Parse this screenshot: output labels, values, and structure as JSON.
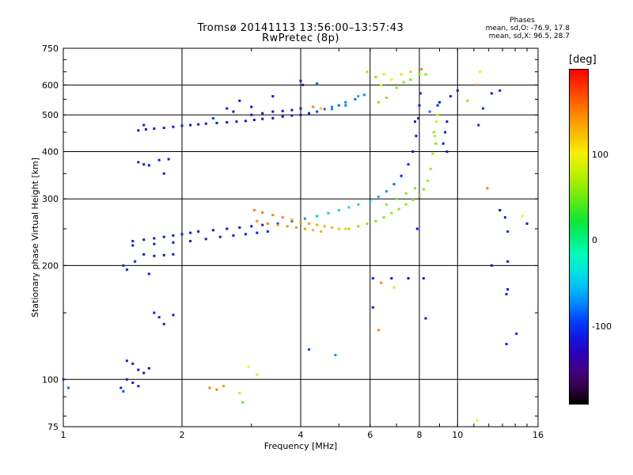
{
  "header": {
    "title_line1": "Tromsø 20141113 13:56:00–13:57:43",
    "title_line2": "RwPretec (8p)"
  },
  "stats": {
    "heading": "Phases",
    "o_label": "mean, sd,O:",
    "o_values": "-76.9, 17.8",
    "x_label": "mean, sd,X:",
    "x_values": "96.5, 28.7"
  },
  "colorbar": {
    "label": "[deg]",
    "ticks": [
      "100",
      "0",
      "-100"
    ],
    "tick_values": [
      100,
      0,
      -100
    ],
    "range": [
      -190,
      200
    ]
  },
  "chart_data": {
    "type": "scatter",
    "xlabel": "Frequency [MHz]",
    "ylabel": "Stationary phase Virtual Height [km]",
    "x_scale": "log",
    "y_scale": "log",
    "xlim": [
      1,
      16
    ],
    "ylim": [
      75,
      750
    ],
    "x_ticks": [
      1,
      2,
      4,
      6,
      8,
      10,
      16
    ],
    "y_ticks": [
      75,
      100,
      200,
      300,
      400,
      500,
      600,
      750
    ],
    "x_grid": [
      2,
      4,
      6,
      8,
      10
    ],
    "y_grid": [
      100,
      200,
      300,
      400,
      500,
      600
    ],
    "color_encoding": "phase [deg]",
    "points": [
      [
        1.55,
        455,
        -110
      ],
      [
        1.62,
        458,
        -110
      ],
      [
        1.7,
        460,
        -110
      ],
      [
        1.8,
        462,
        -105
      ],
      [
        1.9,
        465,
        -110
      ],
      [
        2.0,
        468,
        -110
      ],
      [
        2.1,
        470,
        -115
      ],
      [
        2.2,
        472,
        -110
      ],
      [
        2.3,
        474,
        -110
      ],
      [
        2.45,
        476,
        -115
      ],
      [
        2.6,
        478,
        -120
      ],
      [
        2.75,
        480,
        -118
      ],
      [
        2.9,
        482,
        -120
      ],
      [
        3.05,
        485,
        -125
      ],
      [
        3.2,
        488,
        -128
      ],
      [
        3.4,
        490,
        -125
      ],
      [
        3.6,
        495,
        -122
      ],
      [
        3.8,
        498,
        -120
      ],
      [
        4.0,
        500,
        -115
      ],
      [
        4.2,
        505,
        -110
      ],
      [
        4.4,
        510,
        -90
      ],
      [
        4.6,
        518,
        -80
      ],
      [
        4.8,
        525,
        -70
      ],
      [
        5.0,
        530,
        -85
      ],
      [
        5.2,
        540,
        -75
      ],
      [
        5.5,
        550,
        -80
      ],
      [
        5.8,
        565,
        -70
      ],
      [
        3.0,
        500,
        -120
      ],
      [
        3.2,
        505,
        -125
      ],
      [
        3.4,
        510,
        -128
      ],
      [
        3.6,
        512,
        -125
      ],
      [
        3.8,
        515,
        -120
      ],
      [
        4.0,
        520,
        -115
      ],
      [
        4.3,
        525,
        150
      ],
      [
        4.5,
        520,
        120
      ],
      [
        4.8,
        518,
        -70
      ],
      [
        5.2,
        530,
        -80
      ],
      [
        5.6,
        560,
        -60
      ],
      [
        1.6,
        470,
        -100
      ],
      [
        2.4,
        490,
        -95
      ],
      [
        2.6,
        520,
        -110
      ],
      [
        2.8,
        545,
        -120
      ],
      [
        2.7,
        510,
        -130
      ],
      [
        3.0,
        525,
        -120
      ],
      [
        3.4,
        560,
        -125
      ],
      [
        4.0,
        615,
        -120
      ],
      [
        4.05,
        600,
        -115
      ],
      [
        4.4,
        605,
        -80
      ],
      [
        6.3,
        540,
        60
      ],
      [
        6.6,
        555,
        60
      ],
      [
        7.0,
        590,
        55
      ],
      [
        7.3,
        610,
        55
      ],
      [
        7.6,
        620,
        50
      ],
      [
        8.0,
        640,
        55
      ],
      [
        6.4,
        600,
        100
      ],
      [
        6.8,
        620,
        100
      ],
      [
        7.2,
        640,
        110
      ],
      [
        7.6,
        650,
        120
      ],
      [
        8.1,
        660,
        150
      ],
      [
        8.3,
        640,
        60
      ],
      [
        6.5,
        640,
        90
      ],
      [
        5.9,
        650,
        70
      ],
      [
        6.2,
        630,
        60
      ],
      [
        1.5,
        232,
        -110
      ],
      [
        1.6,
        234,
        -110
      ],
      [
        1.7,
        236,
        -112
      ],
      [
        1.8,
        238,
        -110
      ],
      [
        1.9,
        240,
        -112
      ],
      [
        2.0,
        242,
        -110
      ],
      [
        2.1,
        244,
        -115
      ],
      [
        2.2,
        246,
        -115
      ],
      [
        2.4,
        248,
        -118
      ],
      [
        2.6,
        250,
        -120
      ],
      [
        2.8,
        252,
        -118
      ],
      [
        3.0,
        254,
        -110
      ],
      [
        3.2,
        256,
        -105
      ],
      [
        3.5,
        258,
        -100
      ],
      [
        3.8,
        262,
        -90
      ],
      [
        4.1,
        266,
        -70
      ],
      [
        4.4,
        270,
        -55
      ],
      [
        4.7,
        275,
        -45
      ],
      [
        5.0,
        280,
        -40
      ],
      [
        5.3,
        285,
        -35
      ],
      [
        5.6,
        290,
        -40
      ],
      [
        6.0,
        296,
        -50
      ],
      [
        6.3,
        304,
        -60
      ],
      [
        6.6,
        314,
        -70
      ],
      [
        6.9,
        328,
        -85
      ],
      [
        7.2,
        345,
        -100
      ],
      [
        7.5,
        370,
        -110
      ],
      [
        7.7,
        400,
        -120
      ],
      [
        7.85,
        440,
        -125
      ],
      [
        7.95,
        490,
        -125
      ],
      [
        8.0,
        530,
        -120
      ],
      [
        8.05,
        570,
        -120
      ],
      [
        1.5,
        226,
        -110
      ],
      [
        1.7,
        228,
        -110
      ],
      [
        1.9,
        230,
        -108
      ],
      [
        2.1,
        232,
        -110
      ],
      [
        2.3,
        235,
        -110
      ],
      [
        2.5,
        238,
        -110
      ],
      [
        2.7,
        240,
        -115
      ],
      [
        2.9,
        242,
        -115
      ],
      [
        3.1,
        244,
        -110
      ],
      [
        3.3,
        246,
        -100
      ],
      [
        1.6,
        214,
        -115
      ],
      [
        1.7,
        212,
        -115
      ],
      [
        1.8,
        213,
        -115
      ],
      [
        1.9,
        214,
        -115
      ],
      [
        3.05,
        280,
        150
      ],
      [
        3.2,
        276,
        150
      ],
      [
        3.4,
        272,
        150
      ],
      [
        3.6,
        268,
        150
      ],
      [
        3.8,
        264,
        140
      ],
      [
        4.0,
        260,
        140
      ],
      [
        4.2,
        258,
        140
      ],
      [
        4.4,
        256,
        130
      ],
      [
        4.6,
        254,
        130
      ],
      [
        4.8,
        252,
        130
      ],
      [
        5.0,
        250,
        125
      ],
      [
        5.2,
        250,
        120
      ],
      [
        3.1,
        262,
        150
      ],
      [
        3.3,
        258,
        150
      ],
      [
        3.5,
        256,
        145
      ],
      [
        3.7,
        254,
        145
      ],
      [
        3.9,
        252,
        140
      ],
      [
        4.1,
        250,
        140
      ],
      [
        4.3,
        248,
        130
      ],
      [
        4.5,
        246,
        128
      ],
      [
        5.3,
        250,
        60
      ],
      [
        5.6,
        254,
        60
      ],
      [
        5.9,
        258,
        60
      ],
      [
        6.2,
        262,
        60
      ],
      [
        6.5,
        268,
        60
      ],
      [
        6.8,
        275,
        60
      ],
      [
        7.1,
        282,
        60
      ],
      [
        7.4,
        290,
        60
      ],
      [
        7.7,
        298,
        60
      ],
      [
        8.0,
        306,
        55
      ],
      [
        8.2,
        318,
        60
      ],
      [
        8.4,
        335,
        70
      ],
      [
        8.55,
        360,
        70
      ],
      [
        8.65,
        395,
        70
      ],
      [
        8.75,
        440,
        75
      ],
      [
        8.85,
        480,
        80
      ],
      [
        8.9,
        500,
        85
      ],
      [
        6.6,
        290,
        60
      ],
      [
        7.0,
        300,
        60
      ],
      [
        7.4,
        310,
        60
      ],
      [
        7.8,
        320,
        60
      ],
      [
        1.55,
        375,
        -110
      ],
      [
        1.6,
        370,
        -110
      ],
      [
        1.65,
        368,
        -110
      ],
      [
        1.75,
        380,
        -110
      ],
      [
        1.85,
        382,
        -110
      ],
      [
        1.8,
        350,
        -110
      ],
      [
        1.42,
        200,
        -100
      ],
      [
        1.45,
        195,
        -100
      ],
      [
        1.52,
        205,
        -100
      ],
      [
        1.65,
        190,
        -110
      ],
      [
        1.7,
        150,
        -110
      ],
      [
        1.75,
        146,
        -110
      ],
      [
        1.8,
        140,
        -110
      ],
      [
        1.9,
        148,
        -110
      ],
      [
        1.45,
        112,
        -110
      ],
      [
        1.5,
        110,
        -110
      ],
      [
        1.55,
        106,
        -120
      ],
      [
        1.6,
        104,
        -120
      ],
      [
        1.65,
        107,
        -120
      ],
      [
        1.45,
        100,
        -115
      ],
      [
        1.5,
        98,
        -110
      ],
      [
        1.55,
        96,
        -100
      ],
      [
        1.4,
        95,
        -100
      ],
      [
        1.42,
        93,
        -90
      ],
      [
        1.0,
        100,
        -80
      ],
      [
        1.03,
        95,
        -80
      ],
      [
        2.35,
        95,
        150
      ],
      [
        2.45,
        94,
        150
      ],
      [
        2.55,
        96,
        140
      ],
      [
        2.8,
        92,
        80
      ],
      [
        2.85,
        87,
        50
      ],
      [
        2.95,
        108,
        100
      ],
      [
        3.1,
        103,
        90
      ],
      [
        4.2,
        120,
        -90
      ],
      [
        4.9,
        116,
        -70
      ],
      [
        6.1,
        185,
        -110
      ],
      [
        6.4,
        180,
        150
      ],
      [
        6.8,
        185,
        -110
      ],
      [
        7.5,
        185,
        -120
      ],
      [
        6.1,
        155,
        -110
      ],
      [
        6.3,
        135,
        150
      ],
      [
        8.2,
        185,
        -110
      ],
      [
        8.3,
        145,
        -110
      ],
      [
        6.9,
        175,
        110
      ],
      [
        9.6,
        560,
        -110
      ],
      [
        10.0,
        580,
        -120
      ],
      [
        10.6,
        545,
        60
      ],
      [
        11.2,
        600,
        150
      ],
      [
        11.4,
        650,
        100
      ],
      [
        11.3,
        470,
        -100
      ],
      [
        11.6,
        520,
        -100
      ],
      [
        12.2,
        570,
        -120
      ],
      [
        12.8,
        580,
        -110
      ],
      [
        11.9,
        320,
        150
      ],
      [
        12.8,
        280,
        -120
      ],
      [
        13.2,
        268,
        -100
      ],
      [
        13.4,
        246,
        -100
      ],
      [
        14.6,
        270,
        100
      ],
      [
        15.0,
        258,
        -110
      ],
      [
        13.4,
        205,
        -110
      ],
      [
        12.2,
        200,
        -120
      ],
      [
        13.4,
        173,
        -110
      ],
      [
        13.3,
        168,
        -110
      ],
      [
        13.3,
        124,
        -110
      ],
      [
        14.1,
        132,
        -100
      ],
      [
        11.2,
        78,
        100
      ],
      [
        8.7,
        450,
        60
      ],
      [
        8.8,
        420,
        60
      ],
      [
        9.2,
        420,
        -110
      ],
      [
        9.4,
        400,
        -110
      ],
      [
        9.3,
        450,
        -110
      ],
      [
        9.4,
        480,
        -110
      ],
      [
        8.9,
        530,
        -100
      ],
      [
        9.0,
        540,
        -110
      ],
      [
        8.5,
        510,
        -80
      ],
      [
        7.8,
        480,
        -110
      ],
      [
        7.9,
        250,
        -110
      ]
    ]
  }
}
